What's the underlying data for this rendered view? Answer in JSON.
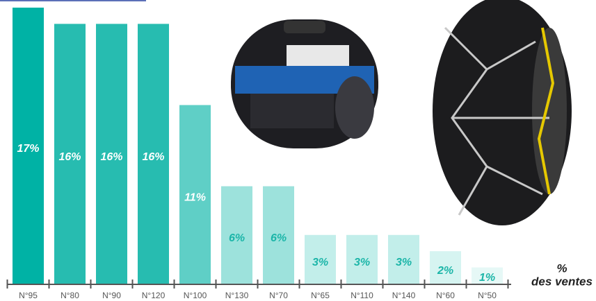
{
  "chart_data": {
    "type": "bar",
    "categories": [
      "N°95",
      "N°80",
      "N°90",
      "N°120",
      "N°100",
      "N°130",
      "N°70",
      "N°65",
      "N°110",
      "N°140",
      "N°60",
      "N°50"
    ],
    "values": [
      17,
      16,
      16,
      16,
      11,
      6,
      6,
      3,
      3,
      3,
      2,
      1
    ],
    "value_labels": [
      "17%",
      "16%",
      "16%",
      "16%",
      "11%",
      "6%",
      "6%",
      "3%",
      "3%",
      "3%",
      "2%",
      "1%"
    ],
    "colors": [
      "#00b2a5",
      "#27bcb0",
      "#27bcb0",
      "#27bcb0",
      "#5fcfc6",
      "#9de2dc",
      "#9de2dc",
      "#c2eeea",
      "#c2eeea",
      "#c2eeea",
      "#d6f4f1",
      "#e6f8f6"
    ],
    "value_axis_label": [
      "%",
      "des ventes"
    ]
  }
}
